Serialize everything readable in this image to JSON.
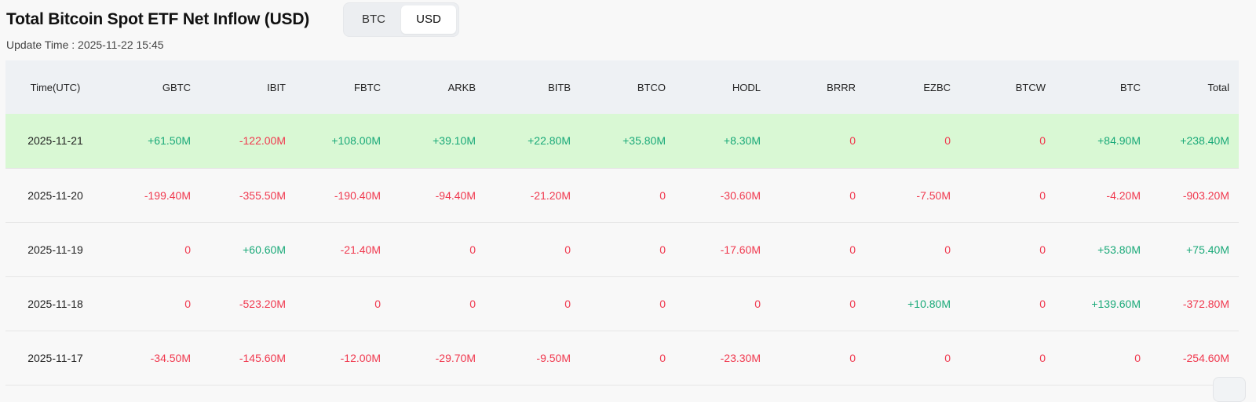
{
  "header": {
    "title": "Total Bitcoin Spot ETF Net Inflow (USD)",
    "toggle": [
      {
        "label": "BTC",
        "active": false
      },
      {
        "label": "USD",
        "active": true
      }
    ],
    "update_time": "Update Time : 2025-11-22 15:45"
  },
  "table": {
    "columns": [
      "Time(UTC)",
      "GBTC",
      "IBIT",
      "FBTC",
      "ARKB",
      "BITB",
      "BTCO",
      "HODL",
      "BRRR",
      "EZBC",
      "BTCW",
      "BTC",
      "Total"
    ],
    "rows": [
      {
        "highlight": true,
        "cells": [
          "2025-11-21",
          "+61.50M",
          "-122.00M",
          "+108.00M",
          "+39.10M",
          "+22.80M",
          "+35.80M",
          "+8.30M",
          "0",
          "0",
          "0",
          "+84.90M",
          "+238.40M"
        ]
      },
      {
        "highlight": false,
        "cells": [
          "2025-11-20",
          "-199.40M",
          "-355.50M",
          "-190.40M",
          "-94.40M",
          "-21.20M",
          "0",
          "-30.60M",
          "0",
          "-7.50M",
          "0",
          "-4.20M",
          "-903.20M"
        ]
      },
      {
        "highlight": false,
        "cells": [
          "2025-11-19",
          "0",
          "+60.60M",
          "-21.40M",
          "0",
          "0",
          "0",
          "-17.60M",
          "0",
          "0",
          "0",
          "+53.80M",
          "+75.40M"
        ]
      },
      {
        "highlight": false,
        "cells": [
          "2025-11-18",
          "0",
          "-523.20M",
          "0",
          "0",
          "0",
          "0",
          "0",
          "0",
          "+10.80M",
          "0",
          "+139.60M",
          "-372.80M"
        ]
      },
      {
        "highlight": false,
        "cells": [
          "2025-11-17",
          "-34.50M",
          "-145.60M",
          "-12.00M",
          "-29.70M",
          "-9.50M",
          "0",
          "-23.30M",
          "0",
          "0",
          "0",
          "0",
          "-254.60M"
        ]
      }
    ]
  },
  "colors": {
    "positive": "#19a978",
    "negative": "#f0384e",
    "highlight_row": "#d9f8d4",
    "header_bg": "#eef1f4"
  },
  "icons": {
    "corner": "gear-icon"
  }
}
